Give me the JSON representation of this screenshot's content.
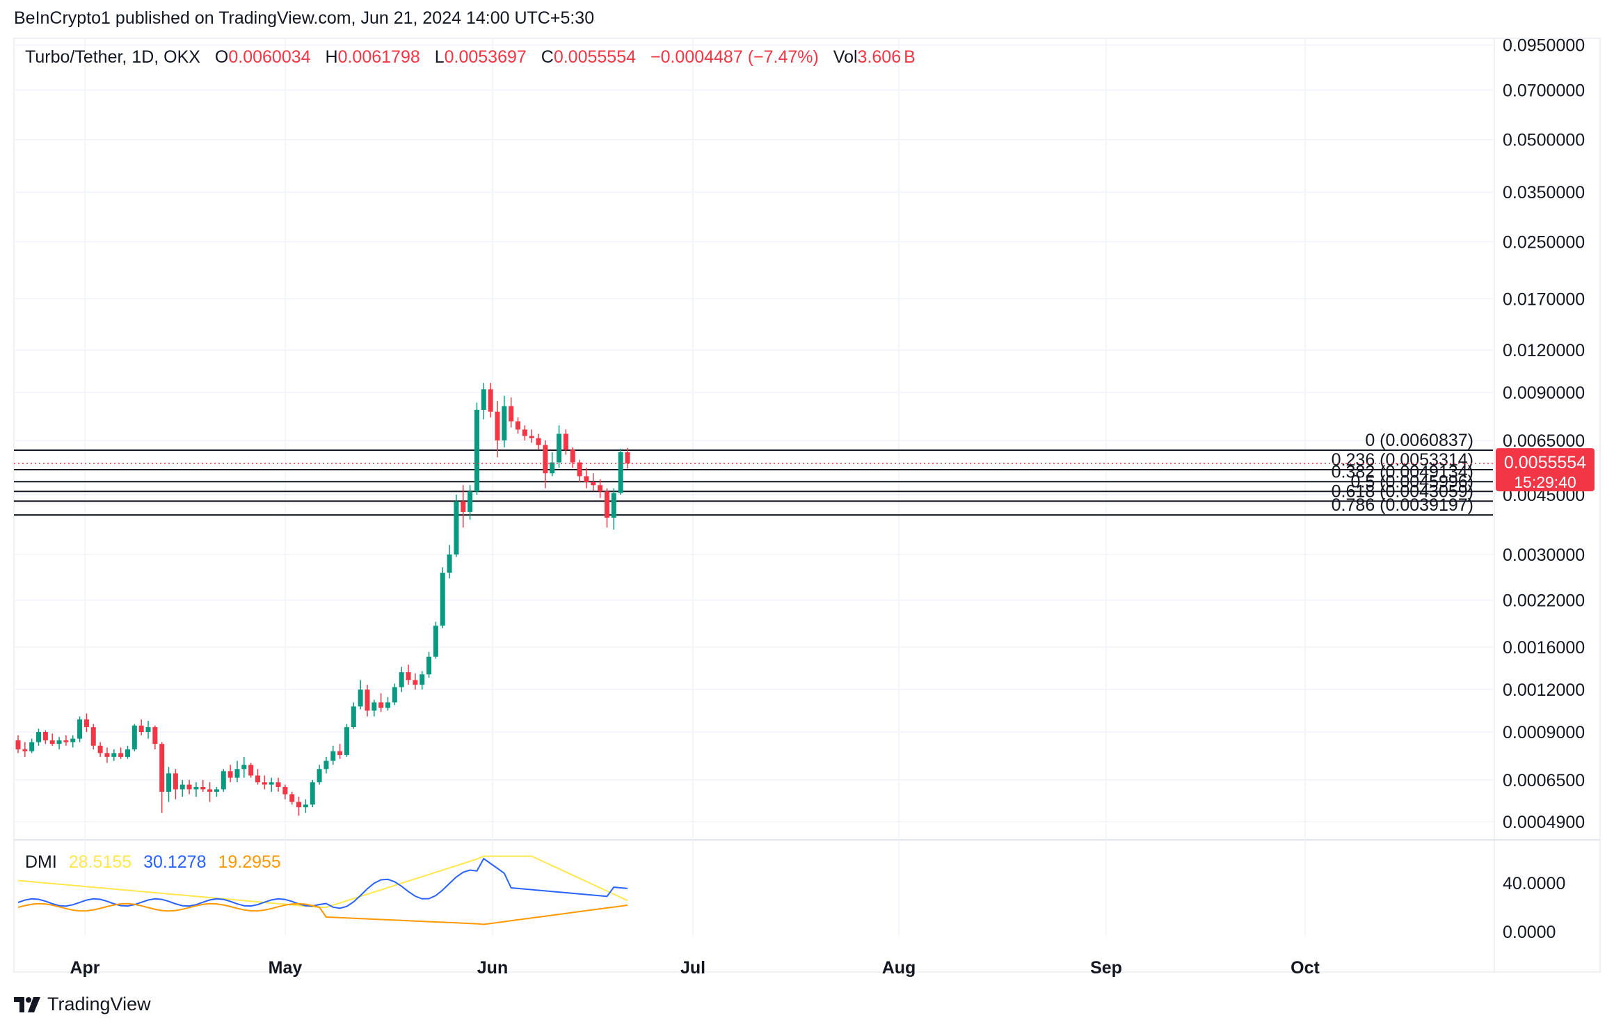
{
  "header": {
    "published_line": "BeInCrypto1 published on TradingView.com, Jun 21, 2024 14:00 UTC+5:30"
  },
  "legend": {
    "symbol": "Turbo/Tether, 1D, OKX",
    "open_label": "O",
    "open": "0.0060034",
    "high_label": "H",
    "high": "0.0061798",
    "low_label": "L",
    "low": "0.0053697",
    "close_label": "C",
    "close": "0.0055554",
    "change": "−0.0004487 (−7.47%)",
    "vol_label": "Vol",
    "vol": "3.606",
    "vol_unit": "B",
    "value_color": "#f23645"
  },
  "dmi": {
    "label": "DMI",
    "adx": "28.5155",
    "plus_di": "30.1278",
    "minus_di": "19.2955",
    "adx_color": "#ffe74d",
    "plus_color": "#2962ff",
    "minus_color": "#ff9800",
    "y_ticks": [
      "40.0000",
      "0.0000"
    ]
  },
  "price_badge": {
    "price": "0.0055554",
    "countdown": "15:29:40",
    "color": "#f23645"
  },
  "fib_levels": [
    {
      "label": "0 (0.0060837)",
      "value": 0.0060837
    },
    {
      "label": "0.236 (0.0053314)",
      "value": 0.0053314
    },
    {
      "label": "0.382 (0.0049134)",
      "value": 0.0049134
    },
    {
      "label": "0.5 (0.0045996)",
      "value": 0.0045996
    },
    {
      "label": "0.618 (0.0043059)",
      "value": 0.0043059
    },
    {
      "label": "0.786 (0.0039197)",
      "value": 0.0039197
    }
  ],
  "chart_data": {
    "type": "candlestick",
    "scale": "log",
    "x_labels": [
      "Apr",
      "May",
      "Jun",
      "Jul",
      "Aug",
      "Sep",
      "Oct"
    ],
    "y_tick_labels": [
      "0.0950000",
      "0.0700000",
      "0.0500000",
      "0.0350000",
      "0.0250000",
      "0.0170000",
      "0.0120000",
      "0.0090000",
      "0.0065000",
      "0.0045000",
      "0.0030000",
      "0.0022000",
      "0.0016000",
      "0.0012000",
      "0.0009000",
      "0.0006500",
      "0.0004900"
    ],
    "y_ticks": [
      0.095,
      0.07,
      0.05,
      0.035,
      0.025,
      0.017,
      0.012,
      0.009,
      0.0065,
      0.0045,
      0.003,
      0.0022,
      0.0016,
      0.0012,
      0.0009,
      0.00065,
      0.00049
    ],
    "up_color": "#089981",
    "down_color": "#f23645",
    "candles": [
      [
        0.00085,
        0.00088,
        0.00078,
        0.0008
      ],
      [
        0.0008,
        0.00084,
        0.00076,
        0.00079
      ],
      [
        0.00079,
        0.00086,
        0.00078,
        0.00084
      ],
      [
        0.00084,
        0.00092,
        0.00082,
        0.0009
      ],
      [
        0.0009,
        0.00091,
        0.00083,
        0.00085
      ],
      [
        0.00085,
        0.00089,
        0.00082,
        0.00083
      ],
      [
        0.00083,
        0.00087,
        0.0008,
        0.00085
      ],
      [
        0.00085,
        0.00088,
        0.00082,
        0.00084
      ],
      [
        0.00084,
        0.00088,
        0.00081,
        0.00086
      ],
      [
        0.00086,
        0.001,
        0.00084,
        0.00098
      ],
      [
        0.00098,
        0.00102,
        0.0009,
        0.00093
      ],
      [
        0.00093,
        0.00095,
        0.0008,
        0.00082
      ],
      [
        0.00082,
        0.00084,
        0.00076,
        0.00078
      ],
      [
        0.00078,
        0.00081,
        0.00073,
        0.00076
      ],
      [
        0.00076,
        0.0008,
        0.00074,
        0.00078
      ],
      [
        0.00078,
        0.00081,
        0.00075,
        0.00076
      ],
      [
        0.00076,
        0.00082,
        0.00075,
        0.0008
      ],
      [
        0.0008,
        0.00095,
        0.00079,
        0.00094
      ],
      [
        0.00094,
        0.00098,
        0.00088,
        0.0009
      ],
      [
        0.0009,
        0.00097,
        0.00086,
        0.00093
      ],
      [
        0.00093,
        0.00094,
        0.0008,
        0.00083
      ],
      [
        0.00083,
        0.00084,
        0.00052,
        0.0006
      ],
      [
        0.0006,
        0.00071,
        0.00056,
        0.00068
      ],
      [
        0.00068,
        0.0007,
        0.00057,
        0.00061
      ],
      [
        0.00061,
        0.00065,
        0.00058,
        0.00063
      ],
      [
        0.00063,
        0.00065,
        0.00059,
        0.00061
      ],
      [
        0.00061,
        0.00064,
        0.00058,
        0.00062
      ],
      [
        0.00062,
        0.00065,
        0.0006,
        0.00061
      ],
      [
        0.00061,
        0.00064,
        0.00056,
        0.0006
      ],
      [
        0.0006,
        0.00062,
        0.00058,
        0.00061
      ],
      [
        0.00061,
        0.0007,
        0.0006,
        0.00069
      ],
      [
        0.00069,
        0.00072,
        0.00064,
        0.00066
      ],
      [
        0.00066,
        0.00074,
        0.00064,
        0.0007
      ],
      [
        0.0007,
        0.00076,
        0.00066,
        0.00072
      ],
      [
        0.00072,
        0.00073,
        0.00066,
        0.00067
      ],
      [
        0.00067,
        0.0007,
        0.00063,
        0.00064
      ],
      [
        0.00064,
        0.00067,
        0.00061,
        0.00063
      ],
      [
        0.00063,
        0.00066,
        0.0006,
        0.00064
      ],
      [
        0.00064,
        0.00066,
        0.0006,
        0.00062
      ],
      [
        0.00062,
        0.00063,
        0.00057,
        0.00059
      ],
      [
        0.00059,
        0.0006,
        0.00055,
        0.00056
      ],
      [
        0.00056,
        0.00058,
        0.00051,
        0.00054
      ],
      [
        0.00054,
        0.00057,
        0.00052,
        0.00055
      ],
      [
        0.00055,
        0.00065,
        0.00054,
        0.00064
      ],
      [
        0.00064,
        0.00072,
        0.00063,
        0.0007
      ],
      [
        0.0007,
        0.00076,
        0.00068,
        0.00074
      ],
      [
        0.00074,
        0.00082,
        0.00072,
        0.00079
      ],
      [
        0.00079,
        0.00083,
        0.00075,
        0.00077
      ],
      [
        0.00077,
        0.00095,
        0.00076,
        0.00093
      ],
      [
        0.00093,
        0.0011,
        0.00092,
        0.00107
      ],
      [
        0.00107,
        0.00128,
        0.00105,
        0.0012
      ],
      [
        0.0012,
        0.00124,
        0.001,
        0.00104
      ],
      [
        0.00104,
        0.00112,
        0.001,
        0.0011
      ],
      [
        0.0011,
        0.00117,
        0.00103,
        0.00106
      ],
      [
        0.00106,
        0.00114,
        0.00104,
        0.0011
      ],
      [
        0.0011,
        0.00125,
        0.00108,
        0.00122
      ],
      [
        0.00122,
        0.0014,
        0.00118,
        0.00135
      ],
      [
        0.00135,
        0.00142,
        0.00124,
        0.00128
      ],
      [
        0.00128,
        0.00134,
        0.0012,
        0.00124
      ],
      [
        0.00124,
        0.00136,
        0.0012,
        0.00133
      ],
      [
        0.00133,
        0.00155,
        0.0013,
        0.0015
      ],
      [
        0.0015,
        0.0019,
        0.00148,
        0.00185
      ],
      [
        0.00185,
        0.00275,
        0.00182,
        0.00265
      ],
      [
        0.00265,
        0.0032,
        0.00255,
        0.003
      ],
      [
        0.003,
        0.0045,
        0.00295,
        0.0043
      ],
      [
        0.0043,
        0.0048,
        0.0036,
        0.004
      ],
      [
        0.004,
        0.0048,
        0.0038,
        0.0046
      ],
      [
        0.0046,
        0.0084,
        0.0045,
        0.008
      ],
      [
        0.008,
        0.0096,
        0.0075,
        0.0092
      ],
      [
        0.0092,
        0.0096,
        0.0076,
        0.0079
      ],
      [
        0.0079,
        0.0085,
        0.0058,
        0.0065
      ],
      [
        0.0065,
        0.0088,
        0.0062,
        0.0082
      ],
      [
        0.0082,
        0.0087,
        0.0071,
        0.0074
      ],
      [
        0.0074,
        0.0076,
        0.0068,
        0.007
      ],
      [
        0.007,
        0.0072,
        0.0065,
        0.0067
      ],
      [
        0.0067,
        0.007,
        0.0064,
        0.0066
      ],
      [
        0.0066,
        0.0068,
        0.0061,
        0.0063
      ],
      [
        0.0063,
        0.0065,
        0.0047,
        0.0052
      ],
      [
        0.0052,
        0.006,
        0.0051,
        0.0056
      ],
      [
        0.0056,
        0.0072,
        0.0054,
        0.0068
      ],
      [
        0.0068,
        0.007,
        0.0059,
        0.0061
      ],
      [
        0.0061,
        0.0062,
        0.0054,
        0.0056
      ],
      [
        0.0056,
        0.0057,
        0.0049,
        0.0051
      ],
      [
        0.0051,
        0.0054,
        0.0047,
        0.0049
      ],
      [
        0.0049,
        0.0052,
        0.0046,
        0.0048
      ],
      [
        0.0048,
        0.005,
        0.0044,
        0.0046
      ],
      [
        0.0046,
        0.0047,
        0.0036,
        0.00385
      ],
      [
        0.00385,
        0.0047,
        0.00355,
        0.00455
      ],
      [
        0.00455,
        0.00615,
        0.0045,
        0.006
      ],
      [
        0.006,
        0.00618,
        0.00537,
        0.00556
      ]
    ]
  }
}
